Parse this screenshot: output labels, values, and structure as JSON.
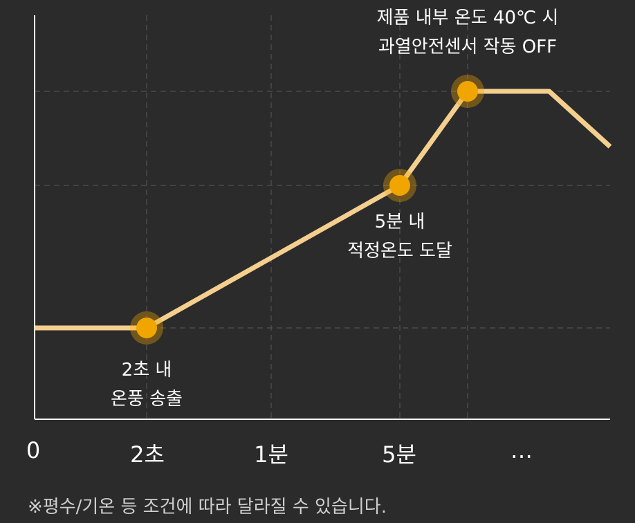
{
  "chart_data": {
    "type": "line",
    "categories": [
      "0",
      "2초",
      "1분",
      "5분",
      "…"
    ],
    "x_tick_labels": [
      "0",
      "2초",
      "1분",
      "5분",
      "…"
    ],
    "series": [
      {
        "values": [
          {
            "x": "0",
            "y": 1
          },
          {
            "x": "2초",
            "y": 1
          },
          {
            "x": "5분",
            "y": 3
          },
          {
            "x": "…",
            "y": 4
          }
        ]
      }
    ],
    "highlighted_points": [
      "2초",
      "5분",
      "…"
    ],
    "annotations": [
      {
        "point": "2초",
        "line1": "2초 내",
        "line2": "온풍 송출"
      },
      {
        "point": "5분",
        "line1": "5분 내",
        "line2": "적정온도 도달"
      },
      {
        "point": "…",
        "line1": "제품 내부 온도 40℃ 시",
        "line2": "과열안전센서 작동 OFF"
      }
    ],
    "grid": true,
    "line_color": "#f5cf8e",
    "marker_color": "#f0a500"
  },
  "footnote": "※평수/기온 등 조건에 따라 달라질 수 있습니다."
}
